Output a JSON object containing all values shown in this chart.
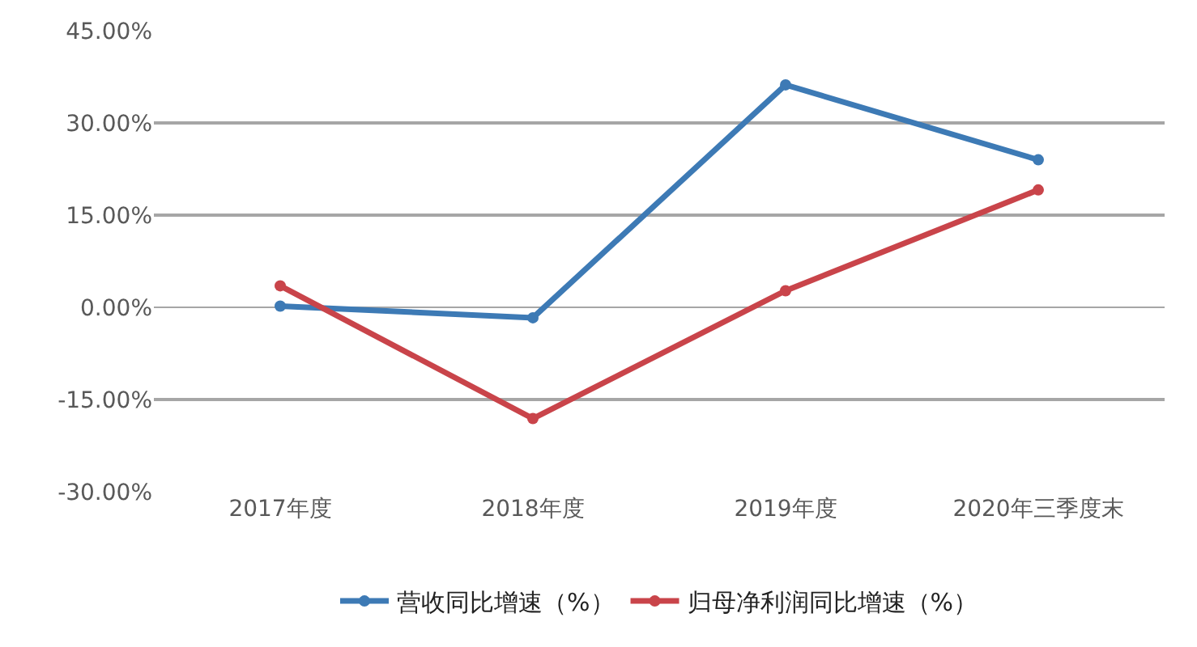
{
  "chart_data": {
    "type": "line",
    "categories": [
      "2017年度",
      "2018年度",
      "2019年度",
      "2020年三季度末"
    ],
    "series": [
      {
        "name": "营收同比增速（%）",
        "color": "#3d7ab5",
        "values": [
          0.2,
          -1.7,
          36.2,
          24.0
        ]
      },
      {
        "name": "归母净利润同比增速（%）",
        "color": "#c9444a",
        "values": [
          3.5,
          -18.1,
          2.7,
          19.1
        ]
      }
    ],
    "ylim": [
      -30,
      45
    ],
    "yticks": [
      {
        "value": -30,
        "label": "-30.00%"
      },
      {
        "value": -15,
        "label": "-15.00%"
      },
      {
        "value": 0,
        "label": "0.00%"
      },
      {
        "value": 15,
        "label": "15.00%"
      },
      {
        "value": 30,
        "label": "30.00%"
      },
      {
        "value": 45,
        "label": "45.00%"
      }
    ],
    "grid": "y",
    "legend": "bottom",
    "marker": "circle",
    "line_style": "solid"
  }
}
